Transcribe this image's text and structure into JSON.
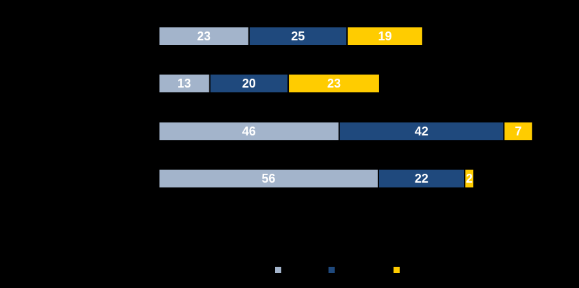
{
  "chart_data": {
    "type": "bar",
    "orientation": "horizontal",
    "stacked": true,
    "title": "",
    "xlabel": "",
    "ylabel": "",
    "categories": [
      "",
      "",
      "",
      ""
    ],
    "xlim": [
      0,
      100
    ],
    "grid": false,
    "legend_position": "bottom",
    "series": [
      {
        "name": "",
        "color": "#A3B4CB",
        "values": [
          23,
          13,
          46,
          56
        ]
      },
      {
        "name": "",
        "color": "#1F497D",
        "values": [
          25,
          20,
          42,
          22
        ]
      },
      {
        "name": "",
        "color": "#FFCC00",
        "values": [
          19,
          23,
          7,
          2
        ]
      }
    ]
  }
}
